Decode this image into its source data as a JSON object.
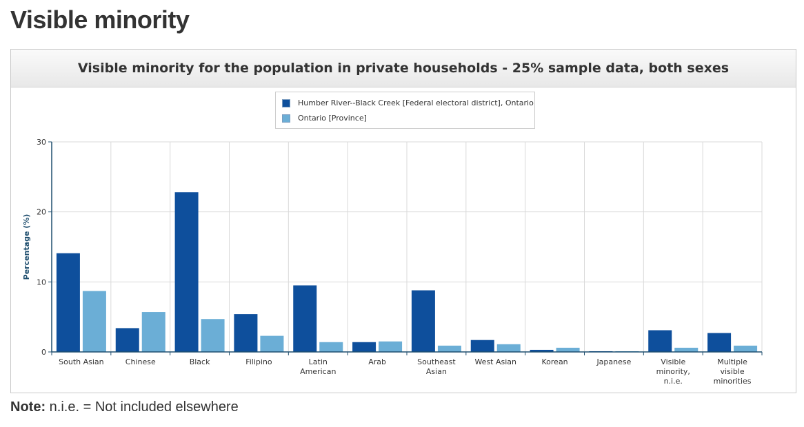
{
  "page_title": "Visible minority",
  "note": {
    "label": "Note:",
    "text": " n.i.e. = Not included elsewhere"
  },
  "colors": {
    "series_1": "#0e4f9c",
    "series_2": "#6baed6",
    "grid": "#d9d9d9",
    "axis": "#1f4e6e"
  },
  "chart_data": {
    "type": "bar",
    "title": "Visible minority for the population in private households - 25% sample data, both sexes",
    "xlabel": "",
    "ylabel": "Percentage (%)",
    "ylim": [
      0,
      30
    ],
    "yticks": [
      0,
      10,
      20,
      30
    ],
    "grid": true,
    "legend_position": "top-center",
    "categories": [
      [
        "South Asian"
      ],
      [
        "Chinese"
      ],
      [
        "Black"
      ],
      [
        "Filipino"
      ],
      [
        "Latin",
        "American"
      ],
      [
        "Arab"
      ],
      [
        "Southeast",
        "Asian"
      ],
      [
        "West Asian"
      ],
      [
        "Korean"
      ],
      [
        "Japanese"
      ],
      [
        "Visible",
        "minority,",
        "n.i.e."
      ],
      [
        "Multiple",
        "visible",
        "minorities"
      ]
    ],
    "series": [
      {
        "name": "Humber River--Black Creek [Federal electoral district], Ontario",
        "values": [
          14.1,
          3.4,
          22.8,
          5.4,
          9.5,
          1.4,
          8.8,
          1.7,
          0.3,
          0.1,
          3.1,
          2.7
        ]
      },
      {
        "name": "Ontario [Province]",
        "values": [
          8.7,
          5.7,
          4.7,
          2.3,
          1.4,
          1.5,
          0.9,
          1.1,
          0.6,
          0.1,
          0.6,
          0.9
        ]
      }
    ]
  }
}
